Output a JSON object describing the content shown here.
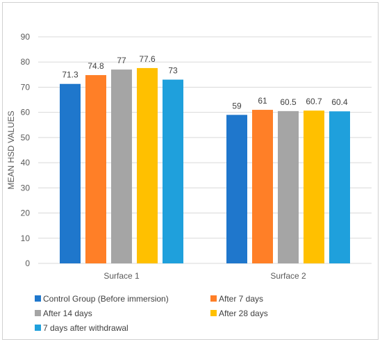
{
  "chart_data": {
    "type": "bar",
    "title": "",
    "xlabel": "",
    "ylabel": "MEAN HSD VALUES",
    "ylim": [
      0,
      90
    ],
    "yticks": [
      0,
      10,
      20,
      30,
      40,
      50,
      60,
      70,
      80,
      90
    ],
    "grid": true,
    "legend_position": "bottom",
    "categories": [
      "Surface 1",
      "Surface 2"
    ],
    "series": [
      {
        "name": "Control Group (Before immersion)",
        "color": "#1f77cc",
        "values": [
          71.3,
          59
        ],
        "labels": [
          "71.3",
          "59"
        ]
      },
      {
        "name": "After 7 days",
        "color": "#ff7f27",
        "values": [
          74.8,
          61
        ],
        "labels": [
          "74.8",
          "61"
        ]
      },
      {
        "name": "After 14 days",
        "color": "#a5a5a5",
        "values": [
          77,
          60.5
        ],
        "labels": [
          "77",
          "60.5"
        ]
      },
      {
        "name": "After 28 days",
        "color": "#ffc000",
        "values": [
          77.6,
          60.7
        ],
        "labels": [
          "77.6",
          "60.7"
        ]
      },
      {
        "name": "7 days after withdrawal",
        "color": "#1fa0dc",
        "values": [
          73,
          60.4
        ],
        "labels": [
          "73",
          "60.4"
        ]
      }
    ]
  }
}
